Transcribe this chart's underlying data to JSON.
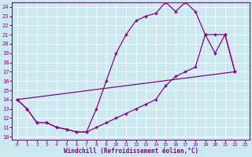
{
  "xlabel": "Windchill (Refroidissement éolien,°C)",
  "bg_color": "#cce9f0",
  "line_color": "#880088",
  "xlim": [
    -0.5,
    23.5
  ],
  "ylim": [
    9.7,
    24.5
  ],
  "xticks": [
    0,
    1,
    2,
    3,
    4,
    5,
    6,
    7,
    8,
    9,
    10,
    11,
    12,
    13,
    14,
    15,
    16,
    17,
    18,
    19,
    20,
    21,
    22,
    23
  ],
  "yticks": [
    10,
    11,
    12,
    13,
    14,
    15,
    16,
    17,
    18,
    19,
    20,
    21,
    22,
    23,
    24
  ],
  "curve1_x": [
    0,
    1,
    2,
    3,
    4,
    5,
    6,
    7,
    8,
    9,
    10,
    11,
    12,
    13,
    14,
    15,
    16,
    17,
    18,
    19,
    20,
    21,
    22
  ],
  "curve1_y": [
    14,
    13,
    11.5,
    11.5,
    11,
    10.8,
    10.5,
    10.5,
    13,
    16,
    19,
    21,
    22.5,
    23.0,
    23.3,
    24.5,
    23.5,
    24.5,
    23.5,
    21.0,
    19.0,
    21.0,
    17.0
  ],
  "curve2_x": [
    0,
    22
  ],
  "curve2_y": [
    14,
    17.0
  ],
  "curve3_x": [
    0,
    1,
    2,
    3,
    4,
    5,
    6,
    7,
    8,
    9,
    10,
    11,
    12,
    13,
    14,
    15,
    16,
    17,
    18,
    19,
    20,
    21,
    22
  ],
  "curve3_y": [
    14,
    13,
    11.5,
    11.5,
    11,
    10.8,
    10.5,
    10.5,
    11.0,
    11.5,
    12.0,
    12.5,
    13.0,
    13.5,
    14.0,
    15.5,
    16.5,
    17.0,
    17.5,
    21.0,
    21.0,
    21.0,
    17.0
  ]
}
